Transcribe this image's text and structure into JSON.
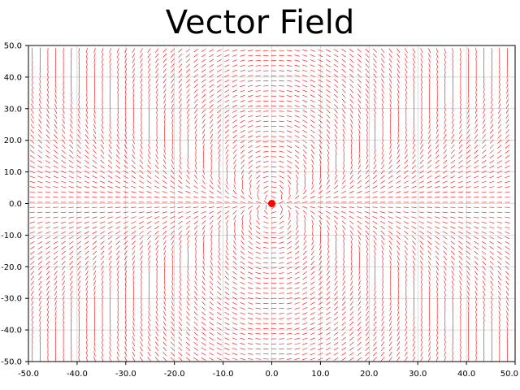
{
  "chart_data": {
    "type": "vector-field",
    "title": "Vector Field",
    "xlabel": "",
    "ylabel": "",
    "xlim": [
      -50.0,
      50.0
    ],
    "ylim": [
      -50.0,
      50.0
    ],
    "x_ticks": [
      "-50.0",
      "-40.0",
      "-30.0",
      "-20.0",
      "-10.0",
      "0.0",
      "10.0",
      "20.0",
      "30.0",
      "40.0",
      "50.0"
    ],
    "y_ticks": [
      "50.0",
      "40.0",
      "30.0",
      "20.0",
      "10.0",
      "0.0",
      "-10.0",
      "-20.0",
      "-30.0",
      "-40.0",
      "-50.0"
    ],
    "grid": true,
    "source_point": {
      "x": 0.0,
      "y": 0.0
    },
    "field_grid_step": 1.6,
    "colors": {
      "vectors": "#ff0000",
      "marker": "#ff0000",
      "grid": "#000000",
      "axes": "#000000"
    }
  }
}
